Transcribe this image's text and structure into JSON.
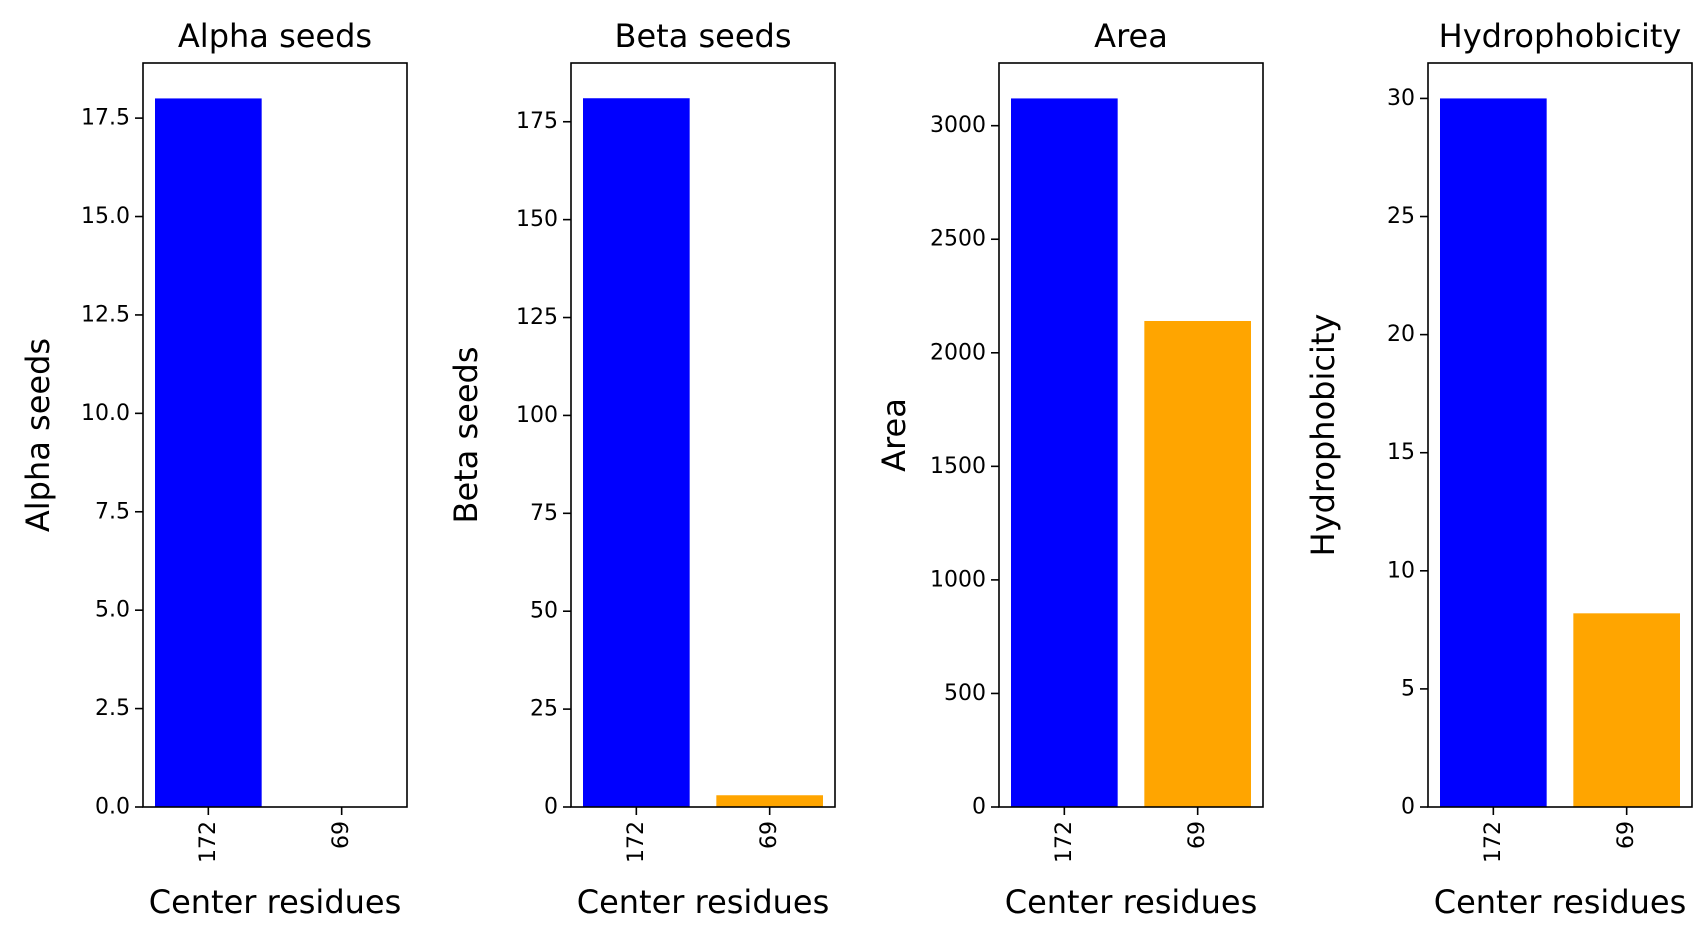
{
  "chart_data": [
    {
      "type": "bar",
      "title": "Alpha seeds",
      "xlabel": "Center residues",
      "ylabel": "Alpha seeds",
      "categories": [
        "172",
        "69"
      ],
      "values": [
        18,
        0
      ],
      "colors": [
        "#0000ff",
        "#ffa500"
      ],
      "ylim": [
        0,
        18.9
      ],
      "yticks": [
        0,
        2.5,
        5,
        7.5,
        10,
        12.5,
        15,
        17.5
      ],
      "ytick_labels": [
        "0.0",
        "2.5",
        "5.0",
        "7.5",
        "10.0",
        "12.5",
        "15.0",
        "17.5"
      ],
      "grid": false,
      "legend": "none"
    },
    {
      "type": "bar",
      "title": "Beta seeds",
      "xlabel": "Center residues",
      "ylabel": "Beta seeds",
      "categories": [
        "172",
        "69"
      ],
      "values": [
        181,
        3
      ],
      "colors": [
        "#0000ff",
        "#ffa500"
      ],
      "ylim": [
        0,
        190
      ],
      "yticks": [
        0,
        25,
        50,
        75,
        100,
        125,
        150,
        175
      ],
      "ytick_labels": [
        "0",
        "25",
        "50",
        "75",
        "100",
        "125",
        "150",
        "175"
      ],
      "grid": false,
      "legend": "none"
    },
    {
      "type": "bar",
      "title": "Area",
      "xlabel": "Center residues",
      "ylabel": "Area",
      "categories": [
        "172",
        "69"
      ],
      "values": [
        3120,
        2140
      ],
      "colors": [
        "#0000ff",
        "#ffa500"
      ],
      "ylim": [
        0,
        3276
      ],
      "yticks": [
        0,
        500,
        1000,
        1500,
        2000,
        2500,
        3000
      ],
      "ytick_labels": [
        "0",
        "500",
        "1000",
        "1500",
        "2000",
        "2500",
        "3000"
      ],
      "grid": false,
      "legend": "none"
    },
    {
      "type": "bar",
      "title": "Hydrophobicity",
      "xlabel": "Center residues",
      "ylabel": "Hydrophobicity",
      "categories": [
        "172",
        "69"
      ],
      "values": [
        30,
        8.2
      ],
      "colors": [
        "#0000ff",
        "#ffa500"
      ],
      "ylim": [
        0,
        31.5
      ],
      "yticks": [
        0,
        5,
        10,
        15,
        20,
        25,
        30
      ],
      "ytick_labels": [
        "0",
        "5",
        "10",
        "15",
        "20",
        "25",
        "30"
      ],
      "grid": false,
      "legend": "none"
    }
  ]
}
